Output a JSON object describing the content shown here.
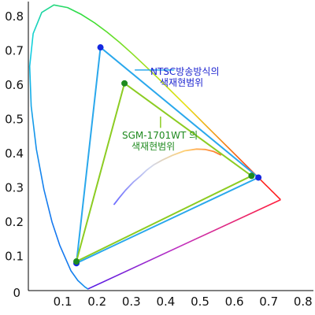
{
  "chart_data": {
    "type": "scatter",
    "title": "",
    "xlabel": "",
    "ylabel": "",
    "xlim": [
      0,
      0.85
    ],
    "ylim": [
      0,
      0.85
    ],
    "x_ticks": [
      "0.1",
      "0.2",
      "0.3",
      "0.4",
      "0.5",
      "0.6",
      "0.7",
      "0.8"
    ],
    "y_ticks": [
      "0.1",
      "0.2",
      "0.3",
      "0.4",
      "0.5",
      "0.6",
      "0.7",
      "0.8"
    ],
    "origin_label": "0",
    "grid": false,
    "spectral_locus": [
      [
        0.1741,
        0.005
      ],
      [
        0.1736,
        0.0049
      ],
      [
        0.1644,
        0.0109
      ],
      [
        0.144,
        0.0297
      ],
      [
        0.1241,
        0.0578
      ],
      [
        0.0913,
        0.1327
      ],
      [
        0.0687,
        0.2007
      ],
      [
        0.0454,
        0.295
      ],
      [
        0.0235,
        0.4127
      ],
      [
        0.0082,
        0.5384
      ],
      [
        0.0039,
        0.6548
      ],
      [
        0.0139,
        0.7502
      ],
      [
        0.0389,
        0.812
      ],
      [
        0.0743,
        0.8338
      ],
      [
        0.1142,
        0.8262
      ],
      [
        0.1547,
        0.8059
      ],
      [
        0.1929,
        0.7816
      ],
      [
        0.2296,
        0.7543
      ],
      [
        0.2658,
        0.7243
      ],
      [
        0.3016,
        0.6923
      ],
      [
        0.3373,
        0.6589
      ],
      [
        0.3731,
        0.6245
      ],
      [
        0.4087,
        0.5896
      ],
      [
        0.4441,
        0.5547
      ],
      [
        0.4788,
        0.5202
      ],
      [
        0.5125,
        0.4866
      ],
      [
        0.5448,
        0.4544
      ],
      [
        0.5752,
        0.4242
      ],
      [
        0.6029,
        0.3965
      ],
      [
        0.627,
        0.3725
      ],
      [
        0.6482,
        0.3514
      ],
      [
        0.6658,
        0.334
      ],
      [
        0.6801,
        0.3197
      ],
      [
        0.6915,
        0.3083
      ],
      [
        0.7006,
        0.2993
      ],
      [
        0.7079,
        0.292
      ],
      [
        0.714,
        0.2859
      ],
      [
        0.719,
        0.2809
      ],
      [
        0.723,
        0.277
      ],
      [
        0.726,
        0.274
      ],
      [
        0.7283,
        0.2717
      ],
      [
        0.73,
        0.27
      ],
      [
        0.7347,
        0.2653
      ]
    ],
    "planckian_locus": [
      [
        0.25,
        0.252
      ],
      [
        0.265,
        0.271
      ],
      [
        0.284,
        0.294
      ],
      [
        0.306,
        0.317
      ],
      [
        0.325,
        0.333
      ],
      [
        0.345,
        0.352
      ],
      [
        0.365,
        0.367
      ],
      [
        0.39,
        0.381
      ],
      [
        0.42,
        0.395
      ],
      [
        0.455,
        0.408
      ],
      [
        0.49,
        0.413
      ],
      [
        0.515,
        0.412
      ],
      [
        0.54,
        0.406
      ],
      [
        0.56,
        0.396
      ]
    ],
    "series": [
      {
        "name": "NTSC방송방식의 색재현범위",
        "color": "#2aa8ec",
        "points": [
          [
            0.21,
            0.71
          ],
          [
            0.67,
            0.33
          ],
          [
            0.14,
            0.08
          ]
        ]
      },
      {
        "name": "SGM-1701WT 의 색재현범위",
        "color": "#8ccc22",
        "points": [
          [
            0.28,
            0.605
          ],
          [
            0.65,
            0.335
          ],
          [
            0.14,
            0.085
          ]
        ]
      }
    ],
    "annotations": [
      {
        "text": "NTSC방송방식의",
        "text2": "색재현범위",
        "color": "#1d24d0",
        "at": [
          0.44,
          0.665
        ]
      },
      {
        "text": "SGM-1701WT 의",
        "text2": "색재현범위",
        "color": "#1f8a1f",
        "at": [
          0.37,
          0.465
        ]
      }
    ]
  }
}
